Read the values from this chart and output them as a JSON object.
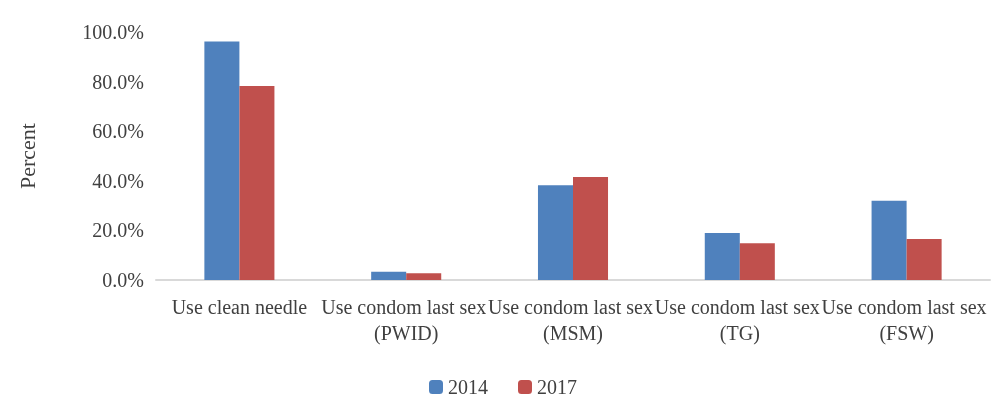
{
  "chart_data": {
    "type": "bar",
    "ylabel": "Percent",
    "categories": [
      "Use clean needle",
      "Use condom last sex (PWID)",
      "Use condom last sex (MSM)",
      "Use condom last sex (TG)",
      "Use condom last sex (FSW)"
    ],
    "series": [
      {
        "name": "2014",
        "color": "#4f81bd",
        "values": [
          96.2,
          3.3,
          38.2,
          19.0,
          32.0
        ]
      },
      {
        "name": "2017",
        "color": "#c0504d",
        "values": [
          78.2,
          2.7,
          41.5,
          14.8,
          16.5
        ]
      }
    ],
    "ylim": [
      0,
      100
    ],
    "yticks": [
      {
        "value": 0,
        "label": "0.0%"
      },
      {
        "value": 20,
        "label": "20.0%"
      },
      {
        "value": 40,
        "label": "40.0%"
      },
      {
        "value": 60,
        "label": "60.0%"
      },
      {
        "value": 80,
        "label": "80.0%"
      },
      {
        "value": 100,
        "label": "100.0%"
      }
    ],
    "grid": false,
    "legend": "bottom"
  }
}
